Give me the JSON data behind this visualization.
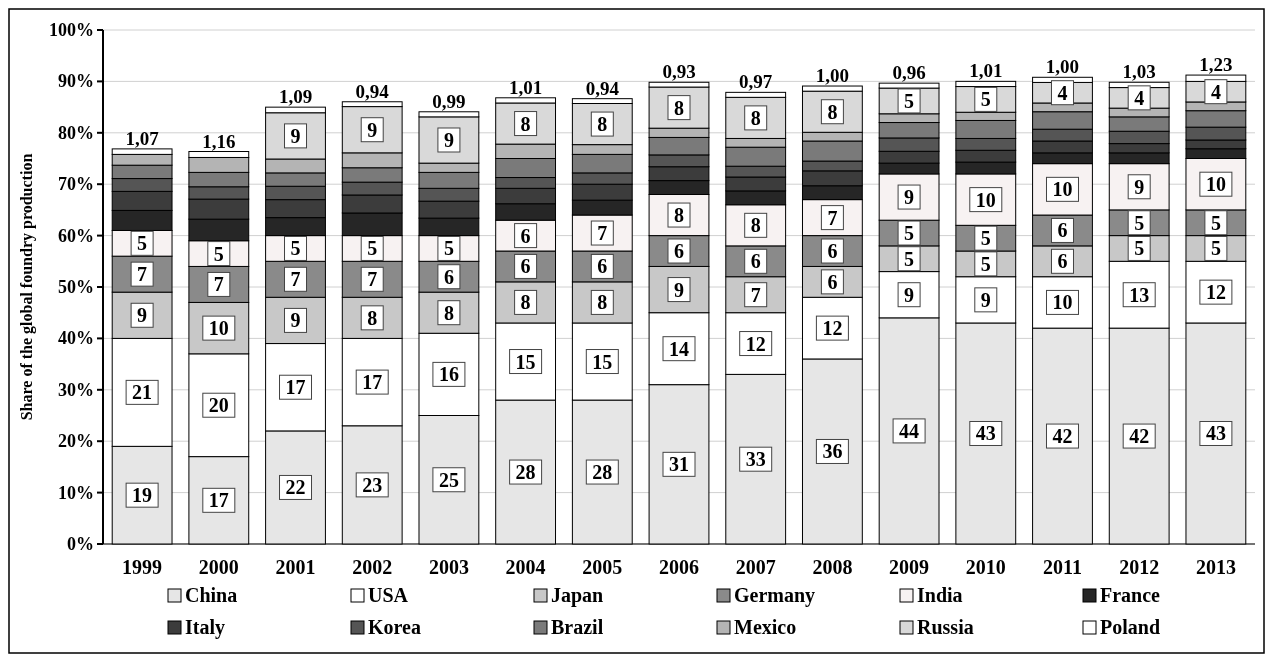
{
  "chart_data": {
    "type": "bar",
    "stacked": true,
    "ylabel": "Share of the global foundry production",
    "categories": [
      "1999",
      "2000",
      "2001",
      "2002",
      "2003",
      "2004",
      "2005",
      "2006",
      "2007",
      "2008",
      "2009",
      "2010",
      "2011",
      "2012",
      "2013"
    ],
    "ylim": [
      0,
      100
    ],
    "yticks": [
      {
        "value": 0,
        "label": "0%"
      },
      {
        "value": 10,
        "label": "10%"
      },
      {
        "value": 20,
        "label": "20%"
      },
      {
        "value": 30,
        "label": "30%"
      },
      {
        "value": 40,
        "label": "40%"
      },
      {
        "value": 50,
        "label": "50%"
      },
      {
        "value": 60,
        "label": "60%"
      },
      {
        "value": 70,
        "label": "70%"
      },
      {
        "value": 80,
        "label": "80%"
      },
      {
        "value": 90,
        "label": "90%"
      },
      {
        "value": 100,
        "label": "100%"
      }
    ],
    "grid": "y",
    "legend": "bottom",
    "series": [
      {
        "name": "China",
        "color": "#e6e6e6",
        "values": [
          19,
          17,
          22,
          23,
          25,
          28,
          28,
          31,
          33,
          36,
          44,
          43,
          42,
          42,
          43
        ],
        "value_labels": [
          "19",
          "17",
          "22",
          "23",
          "25",
          "28",
          "28",
          "31",
          "33",
          "36",
          "44",
          "43",
          "42",
          "42",
          "43"
        ]
      },
      {
        "name": "USA",
        "color": "#ffffff",
        "values": [
          21,
          20,
          17,
          17,
          16,
          15,
          15,
          14,
          12,
          12,
          9,
          9,
          10,
          13,
          12
        ],
        "value_labels": [
          "21",
          "20",
          "17",
          "17",
          "16",
          "15",
          "15",
          "14",
          "12",
          "12",
          "9",
          "9",
          "10",
          "13",
          "12"
        ]
      },
      {
        "name": "Japan",
        "color": "#c8c8c8",
        "values": [
          9,
          10,
          9,
          8,
          8,
          8,
          8,
          9,
          7,
          6,
          5,
          5,
          6,
          5,
          5
        ],
        "value_labels": [
          "9",
          "10",
          "9",
          "8",
          "8",
          "8",
          "8",
          "9",
          "7",
          "6",
          "5",
          "5",
          "6",
          "5",
          "5"
        ]
      },
      {
        "name": "Germany",
        "color": "#8a8a8a",
        "values": [
          7,
          7,
          7,
          7,
          6,
          6,
          6,
          6,
          6,
          6,
          5,
          5,
          6,
          5,
          5
        ],
        "value_labels": [
          "7",
          "7",
          "7",
          "7",
          "6",
          "6",
          "6",
          "6",
          "6",
          "6",
          "5",
          "5",
          "6",
          "5",
          "5"
        ]
      },
      {
        "name": "India",
        "color": "#f7f2f2",
        "values": [
          5,
          5,
          5,
          5,
          5,
          6,
          7,
          8,
          8,
          7,
          9,
          10,
          10,
          9,
          10
        ],
        "value_labels": [
          "5",
          "5",
          "5",
          "5",
          "5",
          "6",
          "7",
          "8",
          "8",
          "7",
          "9",
          "10",
          "10",
          "9",
          "10"
        ]
      },
      {
        "name": "France",
        "color": "#262626",
        "values": [
          3.9,
          4.2,
          3.5,
          4.4,
          3.4,
          3.2,
          2.9,
          2.7,
          2.7,
          2.7,
          2.1,
          2.3,
          2.1,
          2.1,
          1.9
        ]
      },
      {
        "name": "Italy",
        "color": "#3c3c3c",
        "values": [
          3.7,
          3.9,
          3.5,
          3.5,
          3.3,
          3.0,
          3.1,
          2.7,
          2.7,
          2.9,
          2.3,
          2.3,
          2.3,
          1.8,
          1.7
        ]
      },
      {
        "name": "Korea",
        "color": "#555555",
        "values": [
          2.5,
          2.4,
          2.6,
          2.5,
          2.5,
          2.1,
          2.2,
          2.3,
          2.1,
          1.9,
          2.6,
          2.3,
          2.3,
          2.4,
          2.5
        ]
      },
      {
        "name": "Brazil",
        "color": "#7a7a7a",
        "values": [
          2.6,
          2.8,
          2.6,
          2.8,
          3.1,
          3.7,
          3.6,
          3.4,
          3.7,
          3.9,
          3.0,
          3.5,
          3.4,
          2.8,
          3.2
        ]
      },
      {
        "name": "Mexico",
        "color": "#b4b4b4",
        "values": [
          2.1,
          2.9,
          2.7,
          2.9,
          1.8,
          2.8,
          1.9,
          1.8,
          1.7,
          1.7,
          1.7,
          1.6,
          1.7,
          1.7,
          1.7
        ]
      },
      {
        "name": "Russia",
        "color": "#d9d9d9",
        "values": [
          null,
          null,
          9,
          9,
          9,
          8,
          8,
          8,
          8,
          8,
          5,
          5,
          4,
          4,
          4
        ],
        "value_labels": [
          null,
          null,
          "9",
          "9",
          "9",
          "8",
          "8",
          "8",
          "8",
          "8",
          "5",
          "5",
          "4",
          "4",
          "4"
        ]
      },
      {
        "name": "Poland",
        "color": "#ffffff",
        "values": [
          1.07,
          1.16,
          1.09,
          0.94,
          0.99,
          1.01,
          0.94,
          0.93,
          0.97,
          1.0,
          0.96,
          1.01,
          1.0,
          1.03,
          1.23
        ],
        "value_labels": [
          "1,07",
          "1,16",
          "1,09",
          "0,94",
          "0,99",
          "1,01",
          "0,94",
          "0,93",
          "0,97",
          "1,00",
          "0,96",
          "1,01",
          "1,00",
          "1,03",
          "1,23"
        ]
      }
    ]
  }
}
